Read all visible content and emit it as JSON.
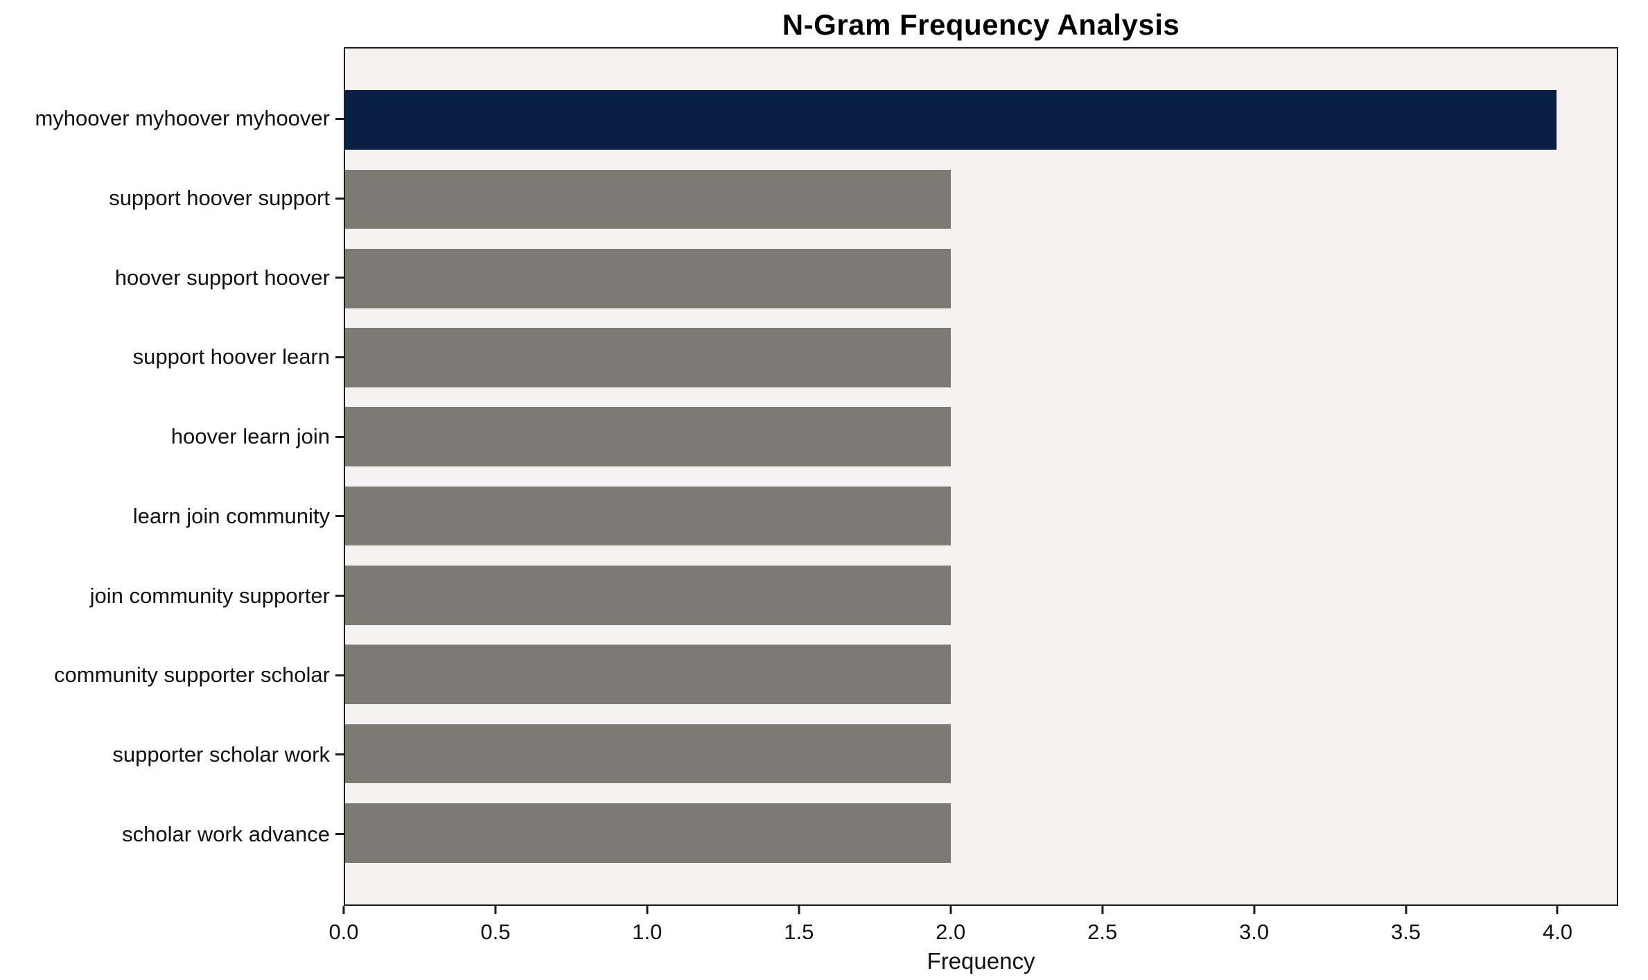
{
  "chart_data": {
    "type": "bar",
    "orientation": "horizontal",
    "title": "N-Gram Frequency Analysis",
    "xlabel": "Frequency",
    "ylabel": "",
    "categories": [
      "myhoover myhoover myhoover",
      "support hoover support",
      "hoover support hoover",
      "support hoover learn",
      "hoover learn join",
      "learn join community",
      "join community supporter",
      "community supporter scholar",
      "supporter scholar work",
      "scholar work advance"
    ],
    "values": [
      4,
      2,
      2,
      2,
      2,
      2,
      2,
      2,
      2,
      2
    ],
    "xticks": [
      0,
      0.5,
      1,
      1.5,
      2,
      2.5,
      3,
      3.5,
      4
    ],
    "xlim": [
      0,
      4.2
    ],
    "grid": false,
    "legend_position": "none",
    "colors": {
      "highlight_bar": "#0A1F44",
      "default_bar": "#7C7A72",
      "plot_background": "#F4F3F1",
      "figure_background": "#FFFFFF",
      "frame": "#1C1C1C",
      "text": "#000000"
    },
    "bar_colors": [
      "#0A1F44",
      "#7C7A72",
      "#7C7A72",
      "#7C7A72",
      "#7C7A72",
      "#7C7A72",
      "#7C7A72",
      "#7C7A72",
      "#7C7A72",
      "#7C7A72"
    ]
  }
}
